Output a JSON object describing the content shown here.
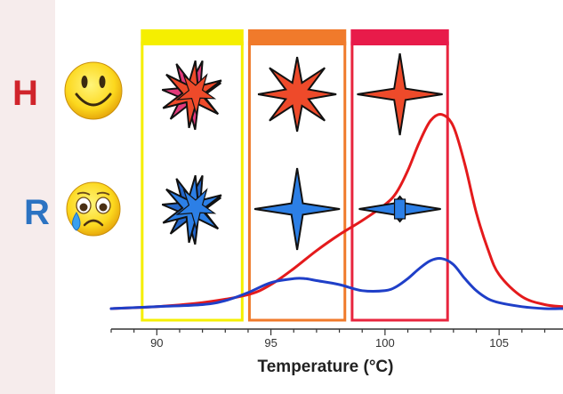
{
  "figure": {
    "row_labels": [
      {
        "text": "H",
        "color": "#d0242b",
        "face": "happy-face-icon"
      },
      {
        "text": "R",
        "color": "#2c73c2",
        "face": "crying-face-icon"
      }
    ],
    "temperature_windows": [
      {
        "from": 89.3,
        "to": 93.8,
        "border_color": "#f5ef00",
        "bar_color": "#f5ef00"
      },
      {
        "from": 94.0,
        "to": 98.3,
        "border_color": "#f07a2b",
        "bar_color": "#f07a2b"
      },
      {
        "from": 98.5,
        "to": 102.8,
        "border_color": "#e8253e",
        "bar_color": "#e81b4a"
      }
    ],
    "star_icons": [
      {
        "row": 0,
        "window": 0,
        "name": "red-burst-star-icon",
        "color": "#ee4a2a",
        "style": "burst"
      },
      {
        "row": 0,
        "window": 1,
        "name": "red-eight-point-star-icon",
        "color": "#ee4a2a",
        "style": "eight"
      },
      {
        "row": 0,
        "window": 2,
        "name": "red-four-point-star-icon",
        "color": "#ee4a2a",
        "style": "four"
      },
      {
        "row": 1,
        "window": 0,
        "name": "blue-burst-star-icon",
        "color": "#2c7fe6",
        "style": "burst"
      },
      {
        "row": 1,
        "window": 1,
        "name": "blue-four-point-star-icon",
        "color": "#2c7fe6",
        "style": "four"
      },
      {
        "row": 1,
        "window": 2,
        "name": "blue-flat-star-icon",
        "color": "#2c7fe6",
        "style": "flat"
      }
    ]
  },
  "chart_data": {
    "type": "line",
    "title": "",
    "xlabel": "Temperature (°C)",
    "ylabel": "",
    "xlim": [
      88,
      107.8
    ],
    "ylim": [
      0,
      1
    ],
    "xticks": [
      90,
      95,
      100,
      105
    ],
    "grid": false,
    "series": [
      {
        "color": "#e41a1c",
        "x": [
          88,
          90,
          92,
          94,
          95,
          96,
          97,
          98,
          99,
          100,
          100.5,
          101,
          101.5,
          102,
          102.5,
          103,
          103.5,
          104,
          104.5,
          105,
          106,
          107,
          107.8
        ],
        "y": [
          0.0,
          0.01,
          0.03,
          0.07,
          0.12,
          0.2,
          0.29,
          0.37,
          0.44,
          0.52,
          0.58,
          0.69,
          0.83,
          0.94,
          0.97,
          0.91,
          0.72,
          0.48,
          0.3,
          0.17,
          0.06,
          0.02,
          0.01
        ]
      },
      {
        "color": "#1f3fc8",
        "x": [
          88,
          90,
          92,
          93,
          94,
          95,
          96,
          96.5,
          97,
          98,
          99,
          100,
          100.5,
          101,
          101.5,
          102,
          102.5,
          103,
          103.5,
          104,
          104.5,
          105,
          106,
          107,
          107.8
        ],
        "y": [
          0.0,
          0.01,
          0.02,
          0.04,
          0.08,
          0.13,
          0.15,
          0.15,
          0.14,
          0.12,
          0.09,
          0.09,
          0.11,
          0.15,
          0.2,
          0.24,
          0.25,
          0.22,
          0.15,
          0.09,
          0.05,
          0.03,
          0.01,
          0.0,
          0.0
        ]
      }
    ]
  }
}
